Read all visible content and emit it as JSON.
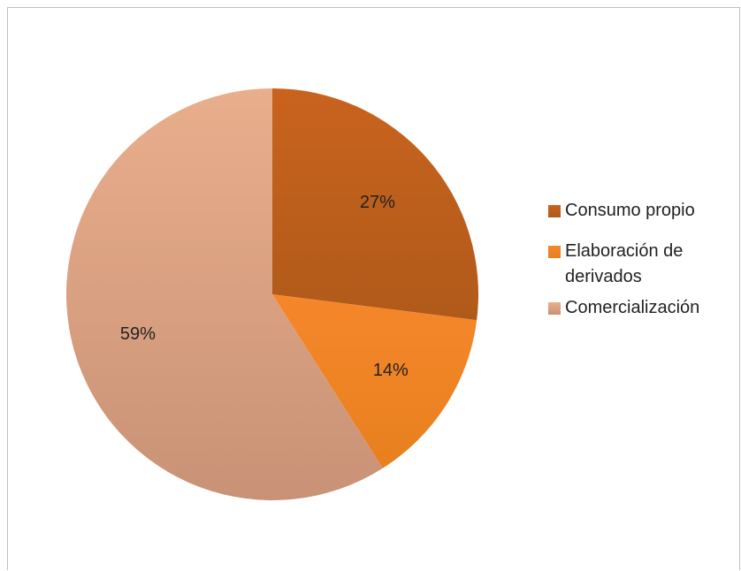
{
  "chart_data": {
    "type": "pie",
    "categories": [
      "Consumo propio",
      "Elaboración de derivados",
      "Comercialización"
    ],
    "values": [
      27,
      14,
      59
    ],
    "labels": [
      "27%",
      "14%",
      "59%"
    ],
    "colors": [
      "#C9631E",
      "#F5872A",
      "#E9AE8C"
    ],
    "gradient_dark": [
      "#B05A1A",
      "#E8801F",
      "#C99276"
    ],
    "start_angle_deg": 0,
    "direction": "clockwise",
    "legend_position": "right"
  }
}
